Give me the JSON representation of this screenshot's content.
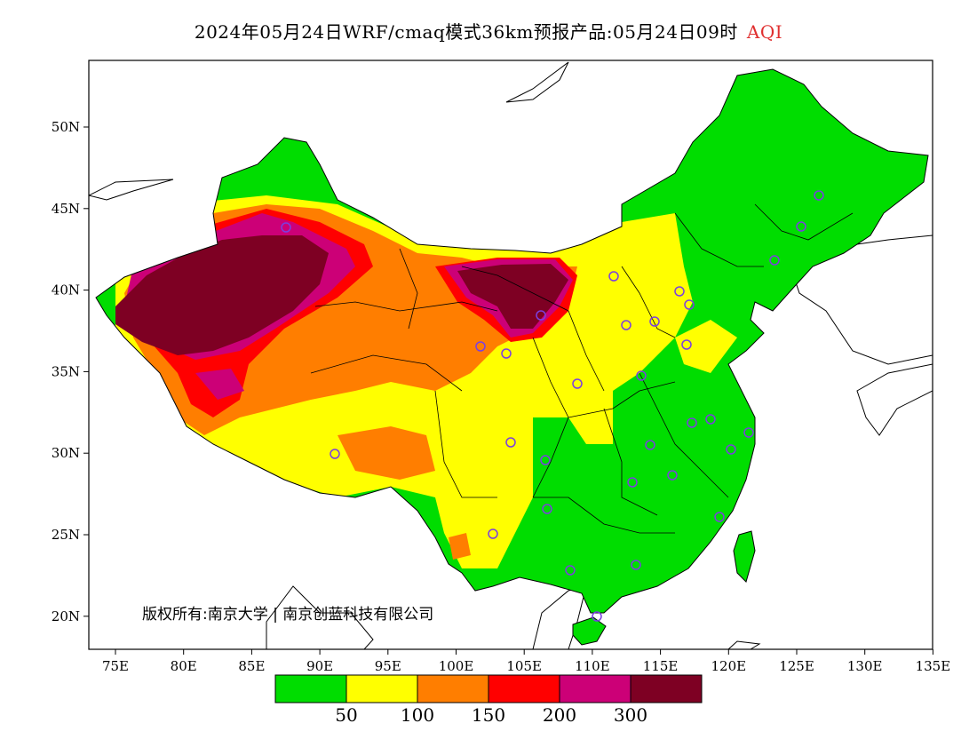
{
  "title": {
    "main": "2024年05月24日WRF/cmaq模式36km预报产品:05月24日09时",
    "variable": "AQI"
  },
  "map": {
    "lon_ticks": [
      "75E",
      "80E",
      "85E",
      "90E",
      "95E",
      "100E",
      "105E",
      "110E",
      "115E",
      "120E",
      "125E",
      "130E",
      "135E"
    ],
    "lat_ticks": [
      "50N",
      "45N",
      "40N",
      "35N",
      "30N",
      "25N",
      "20N"
    ],
    "copyright": "版权所有:南京大学 | 南京创蓝科技有限公司"
  },
  "colorbar": {
    "colors": [
      "#00dd00",
      "#ffff00",
      "#ff7e00",
      "#ff0000",
      "#cc0077",
      "#7e0023"
    ],
    "labels": [
      "50",
      "100",
      "150",
      "200",
      "300"
    ]
  },
  "stations": {
    "color": "#7b3fe0"
  }
}
